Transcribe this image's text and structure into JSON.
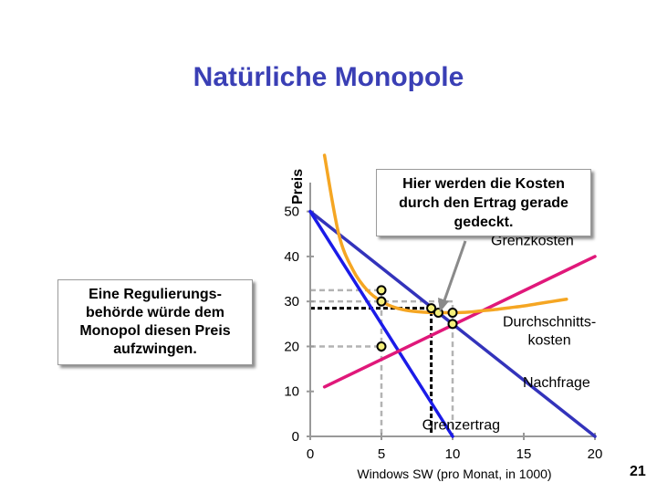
{
  "slide": {
    "title": "Natürliche Monopole",
    "number": "21"
  },
  "callouts": {
    "cost_covered": "Hier werden die Kosten\ndurch den Ertrag gerade\ngedeckt.",
    "regulator": "Eine Regulierungs-\nbehörde würde dem\nMonopol diesen Preis\naufzwingen."
  },
  "chart_data": {
    "type": "line",
    "xlabel": "Windows SW (pro Monat, in 1000)",
    "ylabel": "Preis",
    "xlim": [
      0,
      20
    ],
    "ylim": [
      0,
      55
    ],
    "x_ticks": [
      "0",
      "5",
      "10",
      "15",
      "20"
    ],
    "y_ticks": [
      "0",
      "10",
      "20",
      "30",
      "40",
      "50"
    ],
    "series": [
      {
        "name": "Nachfrage",
        "color": "#3333bb",
        "points": [
          [
            0,
            50
          ],
          [
            20,
            0
          ]
        ]
      },
      {
        "name": "Grenzertrag",
        "color": "#1b1be8",
        "points": [
          [
            0,
            50
          ],
          [
            10,
            0
          ]
        ]
      },
      {
        "name": "Grenzkosten",
        "color": "#e0187a",
        "points": [
          [
            1,
            11
          ],
          [
            20,
            40
          ]
        ]
      },
      {
        "name": "Durchschnitts-\nkosten",
        "color": "#f5a623",
        "points": [
          [
            1,
            62.5
          ],
          [
            2,
            45
          ],
          [
            3,
            37
          ],
          [
            4,
            32.5
          ],
          [
            5,
            30
          ],
          [
            6,
            28.6
          ],
          [
            7,
            27.9
          ],
          [
            8,
            27.6
          ],
          [
            9,
            27.5
          ],
          [
            10,
            27.5
          ],
          [
            11,
            27.6
          ],
          [
            12,
            27.9
          ],
          [
            13,
            28.2
          ],
          [
            14,
            28.6
          ],
          [
            15,
            29
          ],
          [
            16,
            29.5
          ],
          [
            17,
            30
          ],
          [
            18,
            30.5
          ]
        ]
      }
    ],
    "markers": [
      {
        "x": 5,
        "y": 32.5
      },
      {
        "x": 5,
        "y": 30
      },
      {
        "x": 5,
        "y": 20
      },
      {
        "x": 8.5,
        "y": 28.5
      },
      {
        "x": 9,
        "y": 27.5
      },
      {
        "x": 10,
        "y": 27.5
      },
      {
        "x": 10,
        "y": 25
      }
    ],
    "guides": [
      {
        "style": "gray-dashed",
        "points": [
          [
            0,
            32.5
          ],
          [
            5,
            32.5
          ],
          [
            5,
            0
          ]
        ]
      },
      {
        "style": "gray-dashed",
        "points": [
          [
            0,
            20
          ],
          [
            5,
            20
          ]
        ]
      },
      {
        "style": "gray-dashed",
        "points": [
          [
            0,
            30
          ],
          [
            10,
            30
          ],
          [
            10,
            0
          ]
        ]
      },
      {
        "style": "black-dashed",
        "points": [
          [
            0,
            28.5
          ],
          [
            8.5,
            28.5
          ],
          [
            8.5,
            0
          ]
        ]
      }
    ],
    "annotations": [
      {
        "text": "Grenzkosten",
        "x": 15.6,
        "y": 42.5
      },
      {
        "text": "Durchschnitts-\nkosten",
        "x": 16.8,
        "y": 24.5
      },
      {
        "text": "Nachfrage",
        "x": 17.3,
        "y": 11
      },
      {
        "text": "Grenzertrag",
        "x": 10.6,
        "y": 1.5
      }
    ],
    "grid": false,
    "legend": "none"
  }
}
